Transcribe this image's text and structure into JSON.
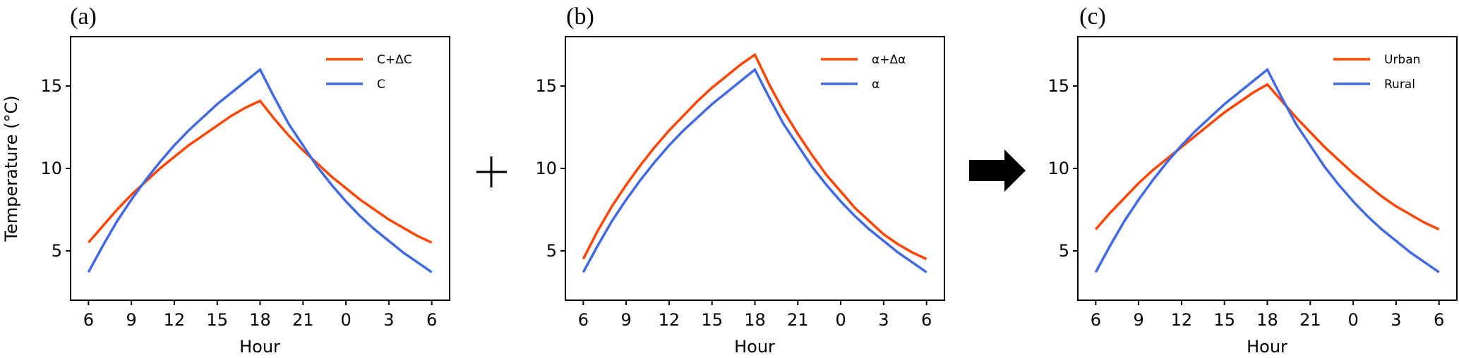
{
  "figure": {
    "operators": [
      {
        "name": "plus-icon",
        "glyph": "+"
      },
      {
        "name": "arrow-right-icon",
        "glyph": "➡"
      }
    ]
  },
  "colors": {
    "red": "#ff4500",
    "blue": "#4169e1"
  },
  "chart_data": [
    {
      "type": "line",
      "panel_label": "(a)",
      "xlabel": "Hour",
      "ylabel": "Temperature (°C)",
      "x_tick_labels": [
        "6",
        "9",
        "12",
        "15",
        "18",
        "21",
        "0",
        "3",
        "6"
      ],
      "y_ticks": [
        5,
        10,
        15
      ],
      "ylim": [
        2.0,
        18.0
      ],
      "xlim_hours_since_6am": [
        -1.25,
        25.25
      ],
      "legend_position": "top-right",
      "x": [
        0,
        1,
        2,
        3,
        4,
        5,
        6,
        7,
        8,
        9,
        10,
        11,
        12,
        13,
        14,
        15,
        16,
        17,
        18,
        19,
        20,
        21,
        22,
        23,
        24
      ],
      "series": [
        {
          "name": "C+ΔC",
          "color": "#ff4500",
          "values": [
            5.5,
            6.5,
            7.5,
            8.4,
            9.2,
            10.0,
            10.7,
            11.4,
            12.0,
            12.6,
            13.2,
            13.7,
            14.1,
            13.0,
            12.0,
            11.1,
            10.3,
            9.5,
            8.8,
            8.1,
            7.5,
            6.9,
            6.4,
            5.9,
            5.5
          ]
        },
        {
          "name": "C",
          "color": "#4169e1",
          "values": [
            3.7,
            5.3,
            6.8,
            8.1,
            9.3,
            10.4,
            11.4,
            12.3,
            13.1,
            13.9,
            14.6,
            15.3,
            16.0,
            14.3,
            12.7,
            11.4,
            10.1,
            9.0,
            8.0,
            7.1,
            6.3,
            5.6,
            4.9,
            4.3,
            3.7
          ]
        }
      ]
    },
    {
      "type": "line",
      "panel_label": "(b)",
      "xlabel": "Hour",
      "ylabel": "",
      "x_tick_labels": [
        "6",
        "9",
        "12",
        "15",
        "18",
        "21",
        "0",
        "3",
        "6"
      ],
      "y_ticks": [
        5,
        10,
        15
      ],
      "ylim": [
        2.0,
        18.0
      ],
      "xlim_hours_since_6am": [
        -1.25,
        25.25
      ],
      "legend_position": "top-right",
      "x": [
        0,
        1,
        2,
        3,
        4,
        5,
        6,
        7,
        8,
        9,
        10,
        11,
        12,
        13,
        14,
        15,
        16,
        17,
        18,
        19,
        20,
        21,
        22,
        23,
        24
      ],
      "series": [
        {
          "name": "α+Δα",
          "color": "#ff4500",
          "values": [
            4.5,
            6.2,
            7.7,
            9.0,
            10.2,
            11.3,
            12.3,
            13.2,
            14.1,
            14.9,
            15.6,
            16.3,
            16.9,
            15.1,
            13.5,
            12.1,
            10.8,
            9.6,
            8.6,
            7.6,
            6.8,
            6.0,
            5.4,
            4.9,
            4.5
          ]
        },
        {
          "name": "α",
          "color": "#4169e1",
          "values": [
            3.7,
            5.3,
            6.8,
            8.1,
            9.3,
            10.4,
            11.4,
            12.3,
            13.1,
            13.9,
            14.6,
            15.3,
            16.0,
            14.3,
            12.7,
            11.4,
            10.1,
            9.0,
            8.0,
            7.1,
            6.3,
            5.6,
            4.9,
            4.3,
            3.7
          ]
        }
      ]
    },
    {
      "type": "line",
      "panel_label": "(c)",
      "xlabel": "Hour",
      "ylabel": "",
      "x_tick_labels": [
        "6",
        "9",
        "12",
        "15",
        "18",
        "21",
        "0",
        "3",
        "6"
      ],
      "y_ticks": [
        5,
        10,
        15
      ],
      "ylim": [
        2.0,
        18.0
      ],
      "xlim_hours_since_6am": [
        -1.25,
        25.25
      ],
      "legend_position": "top-right",
      "x": [
        0,
        1,
        2,
        3,
        4,
        5,
        6,
        7,
        8,
        9,
        10,
        11,
        12,
        13,
        14,
        15,
        16,
        17,
        18,
        19,
        20,
        21,
        22,
        23,
        24
      ],
      "series": [
        {
          "name": "Urban",
          "color": "#ff4500",
          "values": [
            6.3,
            7.3,
            8.2,
            9.1,
            9.9,
            10.6,
            11.3,
            12.0,
            12.7,
            13.4,
            14.0,
            14.6,
            15.1,
            14.1,
            13.1,
            12.2,
            11.3,
            10.5,
            9.7,
            9.0,
            8.3,
            7.7,
            7.2,
            6.7,
            6.3
          ]
        },
        {
          "name": "Rural",
          "color": "#4169e1",
          "values": [
            3.7,
            5.3,
            6.8,
            8.1,
            9.3,
            10.4,
            11.4,
            12.3,
            13.1,
            13.9,
            14.6,
            15.3,
            16.0,
            14.3,
            12.7,
            11.4,
            10.1,
            9.0,
            8.0,
            7.1,
            6.3,
            5.6,
            4.9,
            4.3,
            3.7
          ]
        }
      ]
    }
  ]
}
